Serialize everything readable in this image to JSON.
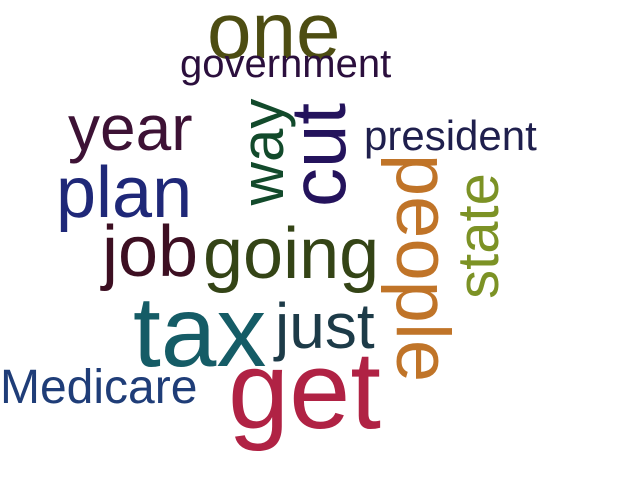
{
  "words": [
    {
      "text": "one",
      "color": "#4d4d12",
      "orientation": "horizontal"
    },
    {
      "text": "government",
      "color": "#2b0f3d",
      "orientation": "horizontal"
    },
    {
      "text": "year",
      "color": "#3d1235",
      "orientation": "horizontal"
    },
    {
      "text": "way",
      "color": "#124a2b",
      "orientation": "vertical"
    },
    {
      "text": "cut",
      "color": "#24135c",
      "orientation": "vertical"
    },
    {
      "text": "president",
      "color": "#1f1f4d",
      "orientation": "horizontal"
    },
    {
      "text": "plan",
      "color": "#1f2878",
      "orientation": "horizontal"
    },
    {
      "text": "people",
      "color": "#c07428",
      "orientation": "vertical"
    },
    {
      "text": "state",
      "color": "#7c9225",
      "orientation": "vertical"
    },
    {
      "text": "job",
      "color": "#3d0f22",
      "orientation": "horizontal"
    },
    {
      "text": "going",
      "color": "#344416",
      "orientation": "horizontal"
    },
    {
      "text": "tax",
      "color": "#155c66",
      "orientation": "horizontal"
    },
    {
      "text": "just",
      "color": "#1d3b48",
      "orientation": "horizontal"
    },
    {
      "text": "Medicare",
      "color": "#1f3d78",
      "orientation": "horizontal"
    },
    {
      "text": "get",
      "color": "#b02244",
      "orientation": "horizontal"
    }
  ]
}
